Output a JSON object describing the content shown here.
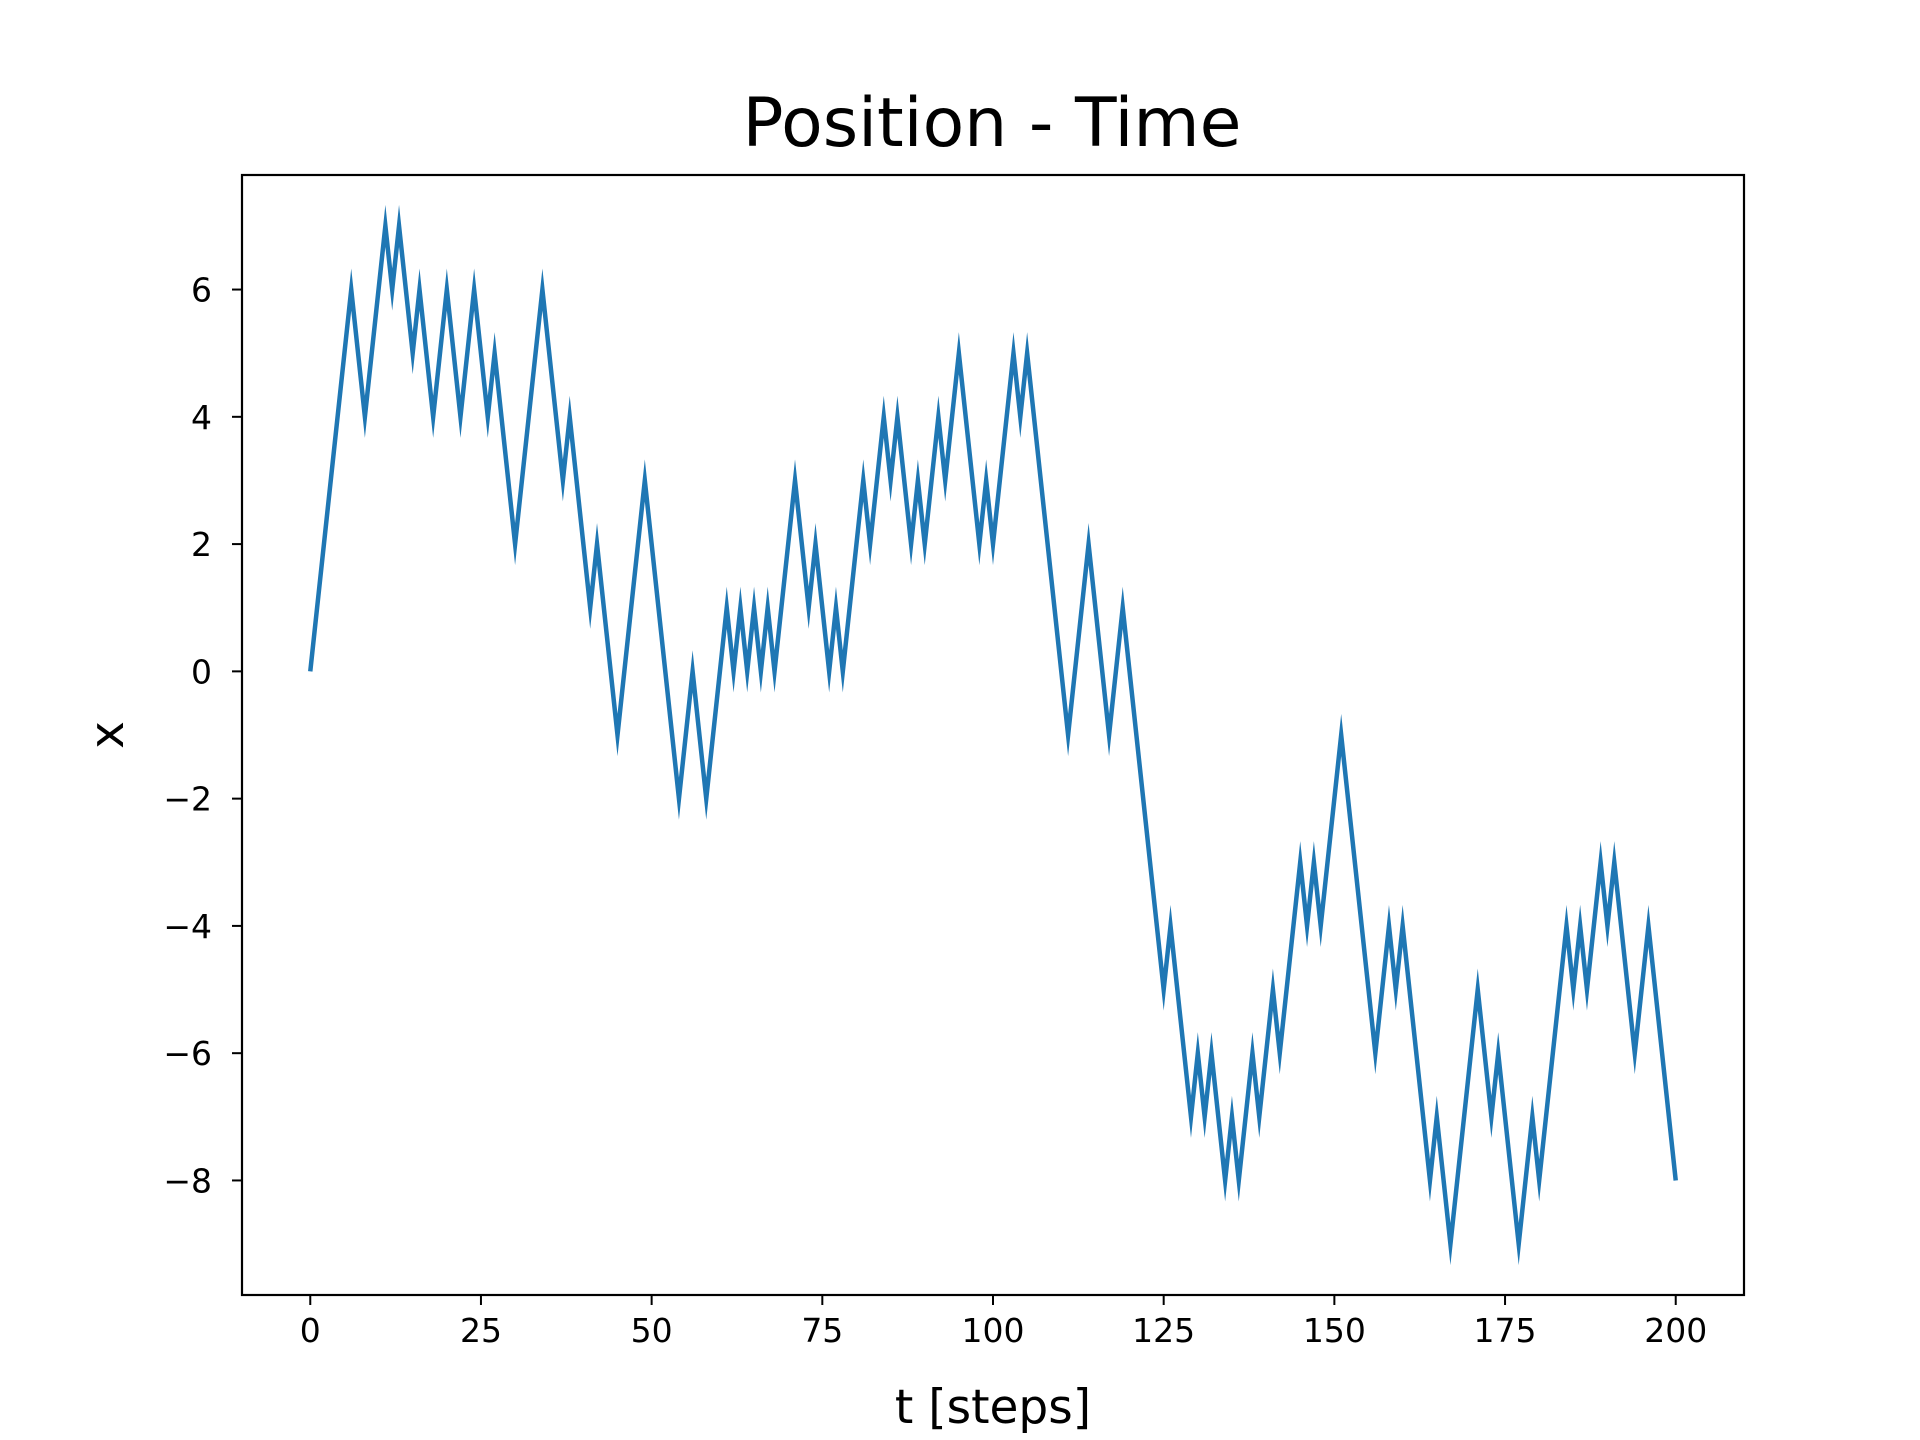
{
  "chart_data": {
    "type": "line",
    "title": "Position - Time",
    "xlabel": "t [steps]",
    "ylabel": "x",
    "xlim": [
      -10,
      210
    ],
    "ylim": [
      -9.8,
      7.8
    ],
    "xticks": [
      0,
      25,
      50,
      75,
      100,
      125,
      150,
      175,
      200
    ],
    "xtick_labels": [
      "0",
      "25",
      "50",
      "75",
      "100",
      "125",
      "150",
      "175",
      "200"
    ],
    "yticks": [
      -8,
      -6,
      -4,
      -2,
      0,
      2,
      4,
      6
    ],
    "ytick_labels": [
      "−8",
      "−6",
      "−4",
      "−2",
      "0",
      "2",
      "4",
      "6"
    ],
    "grid": false,
    "legend": "none",
    "series": [
      {
        "color": "#1f77b4",
        "points": [
          [
            0,
            0
          ],
          [
            6,
            6
          ],
          [
            8,
            4
          ],
          [
            11,
            7
          ],
          [
            12,
            6
          ],
          [
            13,
            7
          ],
          [
            15,
            5
          ],
          [
            16,
            6
          ],
          [
            18,
            4
          ],
          [
            20,
            6
          ],
          [
            22,
            4
          ],
          [
            24,
            6
          ],
          [
            26,
            4
          ],
          [
            27,
            5
          ],
          [
            30,
            2
          ],
          [
            34,
            6
          ],
          [
            37,
            3
          ],
          [
            38,
            4
          ],
          [
            41,
            1
          ],
          [
            42,
            2
          ],
          [
            45,
            -1
          ],
          [
            49,
            3
          ],
          [
            54,
            -2
          ],
          [
            56,
            0
          ],
          [
            58,
            -2
          ],
          [
            61,
            1
          ],
          [
            62,
            0
          ],
          [
            63,
            1
          ],
          [
            64,
            0
          ],
          [
            65,
            1
          ],
          [
            66,
            0
          ],
          [
            67,
            1
          ],
          [
            68,
            0
          ],
          [
            71,
            3
          ],
          [
            73,
            1
          ],
          [
            74,
            2
          ],
          [
            76,
            0
          ],
          [
            77,
            1
          ],
          [
            78,
            0
          ],
          [
            81,
            3
          ],
          [
            82,
            2
          ],
          [
            84,
            4
          ],
          [
            85,
            3
          ],
          [
            86,
            4
          ],
          [
            88,
            2
          ],
          [
            89,
            3
          ],
          [
            90,
            2
          ],
          [
            92,
            4
          ],
          [
            93,
            3
          ],
          [
            95,
            5
          ],
          [
            98,
            2
          ],
          [
            99,
            3
          ],
          [
            100,
            2
          ],
          [
            103,
            5
          ],
          [
            104,
            4
          ],
          [
            105,
            5
          ],
          [
            111,
            -1
          ],
          [
            114,
            2
          ],
          [
            117,
            -1
          ],
          [
            119,
            1
          ],
          [
            125,
            -5
          ],
          [
            126,
            -4
          ],
          [
            129,
            -7
          ],
          [
            130,
            -6
          ],
          [
            131,
            -7
          ],
          [
            132,
            -6
          ],
          [
            134,
            -8
          ],
          [
            135,
            -7
          ],
          [
            136,
            -8
          ],
          [
            138,
            -6
          ],
          [
            139,
            -7
          ],
          [
            141,
            -5
          ],
          [
            142,
            -6
          ],
          [
            145,
            -3
          ],
          [
            146,
            -4
          ],
          [
            147,
            -3
          ],
          [
            148,
            -4
          ],
          [
            151,
            -1
          ],
          [
            156,
            -6
          ],
          [
            158,
            -4
          ],
          [
            159,
            -5
          ],
          [
            160,
            -4
          ],
          [
            164,
            -8
          ],
          [
            165,
            -7
          ],
          [
            167,
            -9
          ],
          [
            171,
            -5
          ],
          [
            173,
            -7
          ],
          [
            174,
            -6
          ],
          [
            177,
            -9
          ],
          [
            179,
            -7
          ],
          [
            180,
            -8
          ],
          [
            184,
            -4
          ],
          [
            185,
            -5
          ],
          [
            186,
            -4
          ],
          [
            187,
            -5
          ],
          [
            189,
            -3
          ],
          [
            190,
            -4
          ],
          [
            191,
            -3
          ],
          [
            194,
            -6
          ],
          [
            196,
            -4
          ],
          [
            200,
            -8
          ]
        ]
      }
    ]
  }
}
